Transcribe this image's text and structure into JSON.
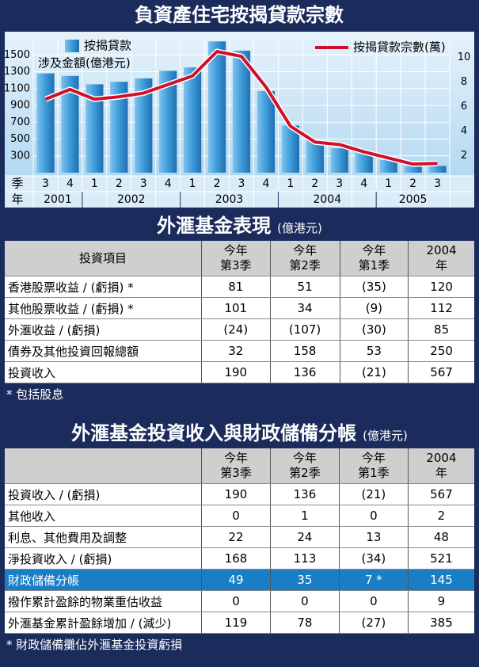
{
  "chart_data": {
    "type": "bar_line",
    "title": "負資產住宅按揭貸款宗數",
    "categories": [
      "3",
      "4",
      "1",
      "2",
      "3",
      "4",
      "1",
      "2",
      "3",
      "4",
      "1",
      "2",
      "3",
      "4",
      "1",
      "2",
      "3"
    ],
    "years": [
      "2001",
      "2002",
      "2003",
      "2004",
      "2005"
    ],
    "x_row_labels": [
      "季",
      "年"
    ],
    "series": [
      {
        "name": [
          "按揭貸款",
          "涉及金額(億港元)"
        ],
        "type": "bar",
        "color": "#3d9ad8",
        "values": [
          1280,
          1250,
          1150,
          1180,
          1220,
          1310,
          1350,
          1660,
          1550,
          1070,
          660,
          480,
          390,
          350,
          250,
          180,
          180
        ]
      },
      {
        "name": "按揭貸款宗數(萬)",
        "type": "line",
        "axis": "y2",
        "color": "#d0102a",
        "values": [
          6.6,
          7.4,
          6.6,
          6.8,
          7.1,
          7.8,
          8.5,
          10.5,
          10.1,
          7.6,
          4.4,
          3.1,
          2.9,
          2.3,
          1.8,
          1.3,
          1.35
        ]
      }
    ],
    "ylim": [
      100,
      1700
    ],
    "yticks": [
      300,
      500,
      700,
      900,
      1100,
      1300,
      1500
    ],
    "y2lim": [
      0.6,
      11.6
    ],
    "y2ticks": [
      2,
      4,
      6,
      8,
      10
    ],
    "grid": true
  },
  "tables": [
    {
      "title": "外滙基金表現",
      "unit": "(億港元)",
      "header": [
        "投資項目",
        "今年\n第3季",
        "今年\n第2季",
        "今年\n第1季",
        "2004\n年"
      ],
      "rows": [
        [
          "香港股票收益 / (虧損) *",
          "81",
          "51",
          "(35)",
          "120"
        ],
        [
          "其他股票收益 / (虧損) *",
          "101",
          "34",
          "(9)",
          "112"
        ],
        [
          "外滙收益 / (虧損)",
          "(24)",
          "(107)",
          "(30)",
          "85"
        ],
        [
          "債券及其他投資回報總額",
          "32",
          "158",
          "53",
          "250"
        ],
        [
          "投資收入",
          "190",
          "136",
          "(21)",
          "567"
        ]
      ],
      "footnote": "* 包括股息"
    },
    {
      "title": "外滙基金投資收入與財政儲備分帳",
      "unit": "(億港元)",
      "header": [
        "",
        "今年\n第3季",
        "今年\n第2季",
        "今年\n第1季",
        "2004\n年"
      ],
      "rows": [
        [
          "投資收入 / (虧損)",
          "190",
          "136",
          "(21)",
          "567"
        ],
        [
          "其他收入",
          "0",
          "1",
          "0",
          "2"
        ],
        [
          "利息、其他費用及調整",
          "22",
          "24",
          "13",
          "48"
        ],
        [
          "淨投資收入 / (虧損)",
          "168",
          "113",
          "(34)",
          "521"
        ],
        [
          "財政儲備分帳",
          "49",
          "35",
          "7 *",
          "145"
        ],
        [
          "撥作累計盈餘的物業重估收益",
          "0",
          "0",
          "0",
          "9"
        ],
        [
          "外滙基金累計盈餘增加 / (減少)",
          "119",
          "78",
          "(27)",
          "385"
        ]
      ],
      "highlight_row": 4,
      "footnote": "* 財政儲備攤佔外滙基金投資虧損"
    }
  ]
}
